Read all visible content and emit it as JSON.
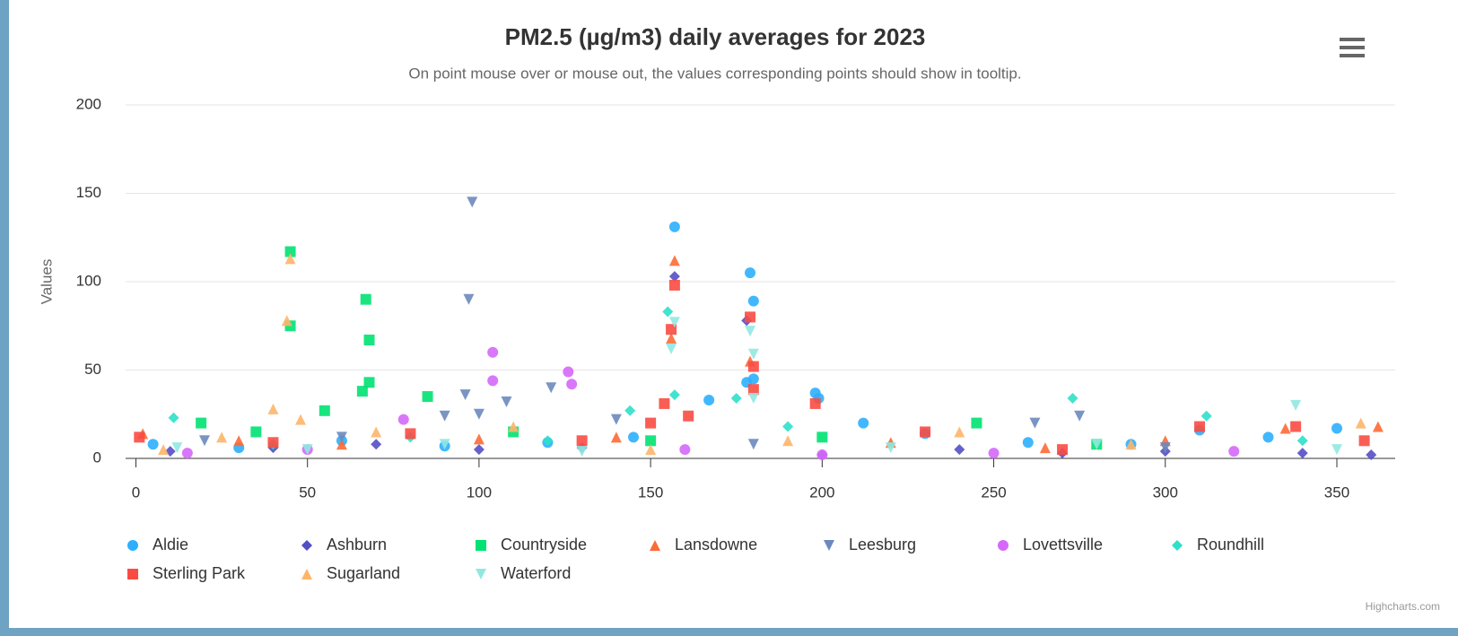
{
  "chart_data": {
    "type": "scatter",
    "title": "PM2.5 (µg/m3) daily averages for 2023",
    "subtitle": "On point mouse over or mouse out, the values corresponding points should show in tooltip.",
    "y_label": "Values",
    "credits": "Highcharts.com",
    "xlim": [
      -3,
      367
    ],
    "ylim": [
      0,
      200
    ],
    "xticks": [
      0,
      50,
      100,
      150,
      200,
      250,
      300,
      350
    ],
    "yticks": [
      0,
      50,
      100,
      150,
      200
    ],
    "grid": true,
    "series": [
      {
        "name": "Aldie",
        "color": "#2caffe",
        "symbol": "circle",
        "x": [
          5,
          30,
          60,
          90,
          120,
          145,
          157,
          167,
          178,
          179,
          180,
          180,
          198,
          199,
          212,
          230,
          260,
          290,
          310,
          330,
          350
        ],
        "values": [
          8,
          6,
          10,
          7,
          9,
          12,
          131,
          33,
          43,
          105,
          89,
          45,
          37,
          34,
          20,
          14,
          9,
          8,
          16,
          12,
          17
        ]
      },
      {
        "name": "Ashburn",
        "color": "#544fc5",
        "symbol": "diamond",
        "x": [
          10,
          40,
          70,
          100,
          130,
          157,
          178,
          200,
          240,
          270,
          300,
          340,
          360
        ],
        "values": [
          4,
          6,
          8,
          5,
          6,
          103,
          78,
          2,
          5,
          3,
          4,
          3,
          2
        ]
      },
      {
        "name": "Countryside",
        "color": "#00e272",
        "symbol": "square",
        "x": [
          19,
          35,
          45,
          45,
          55,
          66,
          67,
          68,
          68,
          85,
          110,
          150,
          200,
          245,
          280
        ],
        "values": [
          20,
          15,
          117,
          75,
          27,
          38,
          90,
          67,
          43,
          35,
          15,
          10,
          12,
          20,
          8
        ]
      },
      {
        "name": "Lansdowne",
        "color": "#fe6a35",
        "symbol": "triangle",
        "x": [
          2,
          30,
          60,
          100,
          140,
          156,
          157,
          179,
          220,
          265,
          300,
          335,
          362
        ],
        "values": [
          14,
          10,
          8,
          11,
          12,
          68,
          112,
          55,
          9,
          6,
          10,
          17,
          18
        ]
      },
      {
        "name": "Leesburg",
        "color": "#6b8abc",
        "symbol": "triangle-down",
        "x": [
          20,
          60,
          90,
          96,
          97,
          98,
          100,
          108,
          121,
          140,
          180,
          262,
          275,
          300
        ],
        "values": [
          10,
          12,
          24,
          36,
          90,
          145,
          25,
          32,
          40,
          22,
          8,
          20,
          24,
          6
        ]
      },
      {
        "name": "Lovettsville",
        "color": "#d568fb",
        "symbol": "circle",
        "x": [
          15,
          50,
          78,
          104,
          104,
          126,
          127,
          160,
          200,
          250,
          320
        ],
        "values": [
          3,
          5,
          22,
          60,
          44,
          49,
          42,
          5,
          2,
          3,
          4
        ]
      },
      {
        "name": "Roundhill",
        "color": "#2ee0ca",
        "symbol": "diamond",
        "x": [
          11,
          40,
          80,
          120,
          144,
          155,
          157,
          175,
          190,
          273,
          312,
          340
        ],
        "values": [
          23,
          8,
          12,
          10,
          27,
          83,
          36,
          34,
          18,
          34,
          24,
          10
        ]
      },
      {
        "name": "Sterling Park",
        "color": "#fa4b42",
        "symbol": "square",
        "x": [
          1,
          40,
          80,
          130,
          150,
          154,
          156,
          157,
          161,
          179,
          180,
          180,
          198,
          230,
          270,
          310,
          338,
          358
        ],
        "values": [
          12,
          9,
          14,
          10,
          20,
          31,
          73,
          98,
          24,
          80,
          52,
          39,
          31,
          15,
          5,
          18,
          18,
          10
        ]
      },
      {
        "name": "Sugarland",
        "color": "#feb56a",
        "symbol": "triangle",
        "x": [
          8,
          25,
          40,
          44,
          45,
          48,
          70,
          110,
          150,
          190,
          240,
          290,
          357
        ],
        "values": [
          5,
          12,
          28,
          78,
          113,
          22,
          15,
          18,
          5,
          10,
          15,
          8,
          20
        ]
      },
      {
        "name": "Waterford",
        "color": "#91e8e1",
        "symbol": "triangle-down",
        "x": [
          12,
          50,
          90,
          130,
          156,
          157,
          179,
          180,
          180,
          220,
          280,
          338,
          350
        ],
        "values": [
          6,
          5,
          8,
          4,
          62,
          77,
          72,
          59,
          34,
          6,
          8,
          30,
          5
        ]
      }
    ]
  }
}
